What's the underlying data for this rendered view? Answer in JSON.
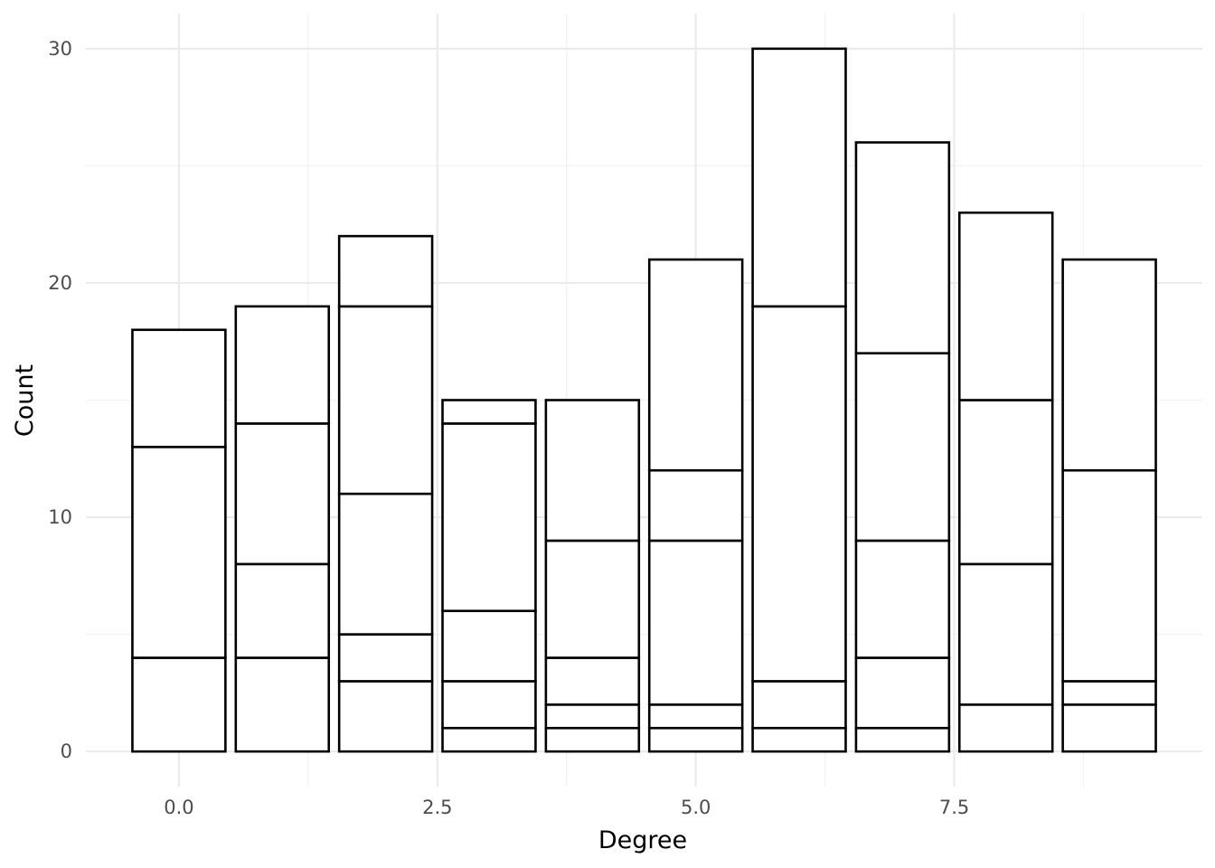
{
  "chart_data": {
    "type": "bar",
    "stacked": true,
    "xlabel": "Degree",
    "ylabel": "Count",
    "x": [
      0,
      1,
      2,
      3,
      4,
      5,
      6,
      7,
      8,
      9
    ],
    "stack_boundaries": [
      [
        4,
        13,
        18
      ],
      [
        4,
        8,
        14,
        19
      ],
      [
        3,
        5,
        11,
        19,
        22
      ],
      [
        1,
        3,
        6,
        14,
        15
      ],
      [
        1,
        2,
        4,
        9,
        15
      ],
      [
        1,
        2,
        9,
        12,
        21
      ],
      [
        1,
        3,
        19,
        30
      ],
      [
        1,
        4,
        9,
        17,
        26
      ],
      [
        2,
        8,
        15,
        23
      ],
      [
        2,
        3,
        12,
        21
      ]
    ],
    "totals": [
      18,
      19,
      22,
      15,
      15,
      21,
      30,
      26,
      23,
      21
    ],
    "x_ticks": [
      "0.0",
      "2.5",
      "5.0",
      "7.5"
    ],
    "x_tick_values": [
      0,
      2.5,
      5,
      7.5
    ],
    "y_ticks": [
      "0",
      "10",
      "20",
      "30"
    ],
    "y_tick_values": [
      0,
      10,
      20,
      30
    ],
    "xlim": [
      -0.9,
      9.9
    ],
    "ylim": [
      -1.5,
      31.5
    ],
    "bar_fill": "#ffffff",
    "bar_stroke": "#000000",
    "grid": true,
    "legend": "none"
  }
}
